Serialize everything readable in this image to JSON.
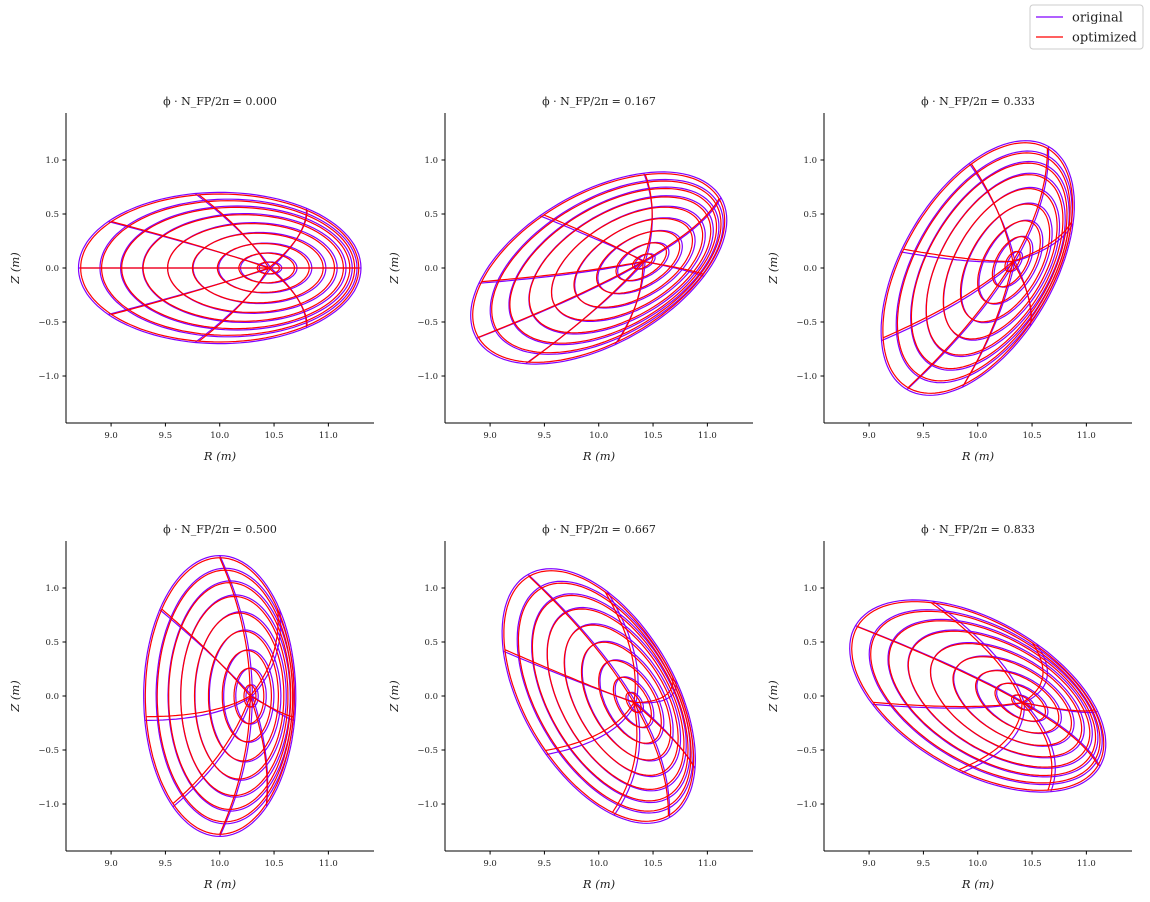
{
  "chart_data": {
    "type": "line",
    "title": "",
    "xlabel": "R (m)",
    "ylabel": "Z (m)",
    "xlim": [
      8.585,
      11.42
    ],
    "ylim": [
      -1.435,
      1.435
    ],
    "xticks": [
      "9.0",
      "9.5",
      "10.0",
      "10.5",
      "11.0"
    ],
    "yticks": [
      "1.0",
      "0.5",
      "0.0",
      "−0.5",
      "−1.0"
    ],
    "grid": false,
    "legend": {
      "placement": "top-right"
    },
    "series": [
      {
        "name": "original",
        "color": "#8000ff"
      },
      {
        "name": "optimized",
        "color": "#ff0000"
      }
    ],
    "panels": [
      {
        "phi_nfp_over_2pi": 0.0,
        "title": "ϕ · N_FP/2π = 0.000"
      },
      {
        "phi_nfp_over_2pi": 0.167,
        "title": "ϕ · N_FP/2π = 0.167"
      },
      {
        "phi_nfp_over_2pi": 0.333,
        "title": "ϕ · N_FP/2π = 0.333"
      },
      {
        "phi_nfp_over_2pi": 0.5,
        "title": "ϕ · N_FP/2π = 0.500"
      },
      {
        "phi_nfp_over_2pi": 0.667,
        "title": "ϕ · N_FP/2π = 0.667"
      },
      {
        "phi_nfp_over_2pi": 0.833,
        "title": "ϕ · N_FP/2π = 0.833"
      }
    ]
  }
}
